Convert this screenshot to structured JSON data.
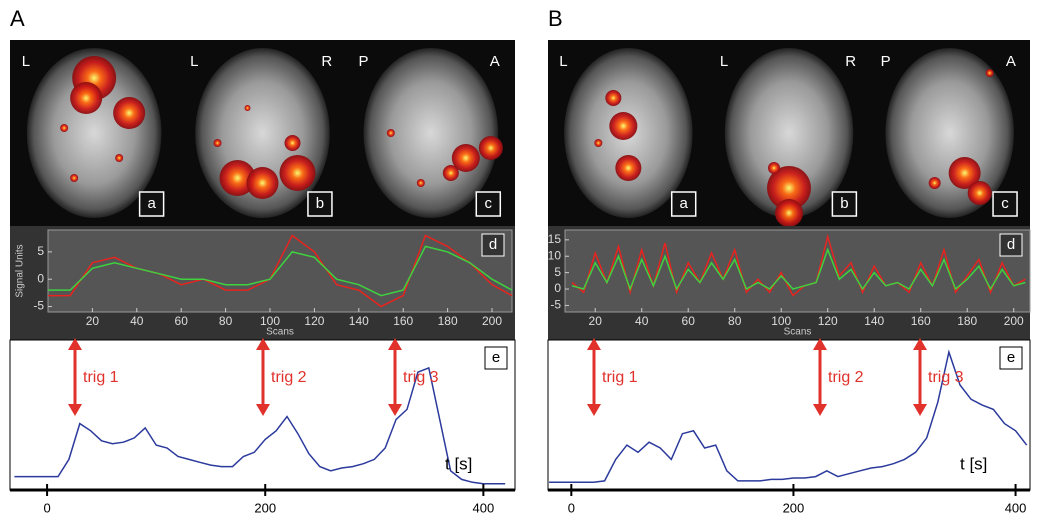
{
  "panels": [
    {
      "label": "A",
      "views": [
        {
          "letters": [
            "L"
          ],
          "label": "a"
        },
        {
          "letters": [
            "L",
            "R"
          ],
          "label": "b"
        },
        {
          "letters": [
            "P",
            "A"
          ],
          "label": "c"
        }
      ],
      "chart_data": [
        {
          "type": "line",
          "label": "d",
          "ylabel": "Signal Units",
          "xlabel": "Scans",
          "x": [
            0,
            10,
            20,
            30,
            40,
            50,
            60,
            70,
            80,
            90,
            100,
            110,
            120,
            130,
            140,
            150,
            160,
            170,
            180,
            190,
            200,
            209
          ],
          "series": [
            {
              "color": "#e8241f",
              "values": [
                -3,
                -3,
                3,
                4,
                2,
                1,
                -1,
                0,
                -2,
                -2,
                0,
                8,
                5,
                -1,
                -2,
                -5,
                -3,
                8,
                6,
                3,
                -1,
                -3
              ]
            },
            {
              "color": "#3fd23f",
              "values": [
                -2,
                -2,
                2,
                3,
                2,
                1,
                0,
                0,
                -1,
                -1,
                0,
                5,
                4,
                0,
                -1,
                -3,
                -2,
                6,
                5,
                3,
                0,
                -2
              ]
            }
          ],
          "xlim": [
            0,
            209
          ],
          "ylim": [
            -6,
            9
          ],
          "xticks": [
            20,
            40,
            60,
            80,
            100,
            120,
            140,
            160,
            180,
            200
          ],
          "yticks": [
            -5,
            0,
            5
          ]
        },
        {
          "type": "line",
          "label": "e",
          "xlabel": "t [s]",
          "annotations": [
            "trig 1",
            "trig 2",
            "trig 3"
          ],
          "x": [
            -30,
            -20,
            -10,
            0,
            10,
            20,
            30,
            40,
            50,
            60,
            70,
            80,
            90,
            100,
            110,
            120,
            130,
            140,
            150,
            160,
            170,
            180,
            190,
            200,
            210,
            220,
            230,
            240,
            250,
            260,
            270,
            280,
            290,
            300,
            310,
            320,
            330,
            340,
            350,
            360,
            370,
            380,
            390,
            400,
            410,
            420
          ],
          "series": [
            {
              "color": "#2b3a9c",
              "values": [
                8,
                8,
                8,
                8,
                8,
                20,
                45,
                40,
                33,
                31,
                32,
                35,
                42,
                30,
                28,
                22,
                20,
                18,
                16,
                15,
                15,
                22,
                25,
                34,
                40,
                50,
                38,
                24,
                15,
                12,
                14,
                15,
                17,
                20,
                28,
                48,
                55,
                81,
                84,
                48,
                12,
                6,
                4,
                3,
                3,
                3
              ]
            }
          ],
          "xlim": [
            -34,
            429
          ],
          "ylim": [
            0,
            100
          ],
          "xticks": [
            0,
            200,
            400
          ]
        }
      ]
    },
    {
      "label": "B",
      "views": [
        {
          "letters": [
            "L"
          ],
          "label": "a"
        },
        {
          "letters": [
            "L",
            "R"
          ],
          "label": "b"
        },
        {
          "letters": [
            "P",
            "A"
          ],
          "label": "c"
        }
      ],
      "chart_data": [
        {
          "type": "line",
          "label": "d",
          "xlabel": "Scans",
          "x": [
            10,
            15,
            20,
            25,
            30,
            35,
            40,
            45,
            50,
            55,
            60,
            65,
            70,
            75,
            80,
            85,
            90,
            95,
            100,
            105,
            110,
            115,
            120,
            125,
            130,
            135,
            140,
            145,
            150,
            155,
            160,
            165,
            170,
            175,
            180,
            185,
            190,
            195,
            200,
            205
          ],
          "series": [
            {
              "color": "#e8241f",
              "values": [
                2,
                -1,
                11,
                2,
                13,
                -1,
                12,
                1,
                14,
                -1,
                8,
                2,
                11,
                3,
                12,
                -1,
                3,
                -1,
                5,
                -2,
                1,
                2,
                16,
                4,
                8,
                -1,
                7,
                1,
                2,
                -1,
                8,
                1,
                12,
                -1,
                4,
                9,
                -1,
                8,
                1,
                3
              ]
            },
            {
              "color": "#3fd23f",
              "values": [
                1,
                0,
                8,
                2,
                10,
                0,
                9,
                1,
                10,
                0,
                6,
                2,
                8,
                3,
                9,
                0,
                2,
                0,
                4,
                0,
                1,
                2,
                12,
                3,
                6,
                0,
                5,
                1,
                2,
                0,
                6,
                1,
                9,
                0,
                3,
                7,
                0,
                6,
                1,
                2
              ]
            }
          ],
          "xlim": [
            7,
            207
          ],
          "ylim": [
            -7,
            18
          ],
          "xticks": [
            20,
            40,
            60,
            80,
            100,
            120,
            140,
            160,
            180,
            200
          ],
          "yticks": [
            -5,
            0,
            5,
            10,
            15
          ]
        },
        {
          "type": "line",
          "label": "e",
          "xlabel": "t [s]",
          "annotations": [
            "trig 1",
            "trig 2",
            "trig 3"
          ],
          "x": [
            -20,
            -10,
            0,
            10,
            20,
            30,
            40,
            50,
            60,
            70,
            80,
            90,
            100,
            110,
            120,
            130,
            140,
            150,
            160,
            170,
            180,
            190,
            200,
            210,
            220,
            230,
            240,
            250,
            260,
            270,
            280,
            290,
            300,
            310,
            320,
            330,
            340,
            350,
            360,
            370,
            380,
            390,
            400,
            410
          ],
          "series": [
            {
              "color": "#2b3a9c",
              "values": [
                4,
                4,
                4,
                4,
                4,
                5,
                20,
                30,
                25,
                32,
                28,
                20,
                38,
                40,
                28,
                30,
                12,
                5,
                5,
                5,
                6,
                6,
                7,
                7,
                8,
                12,
                8,
                10,
                12,
                14,
                15,
                17,
                20,
                25,
                35,
                60,
                95,
                72,
                62,
                58,
                55,
                45,
                40,
                30
              ]
            }
          ],
          "xlim": [
            -21,
            413
          ],
          "ylim": [
            0,
            100
          ],
          "xticks": [
            0,
            200,
            400
          ]
        }
      ]
    }
  ]
}
